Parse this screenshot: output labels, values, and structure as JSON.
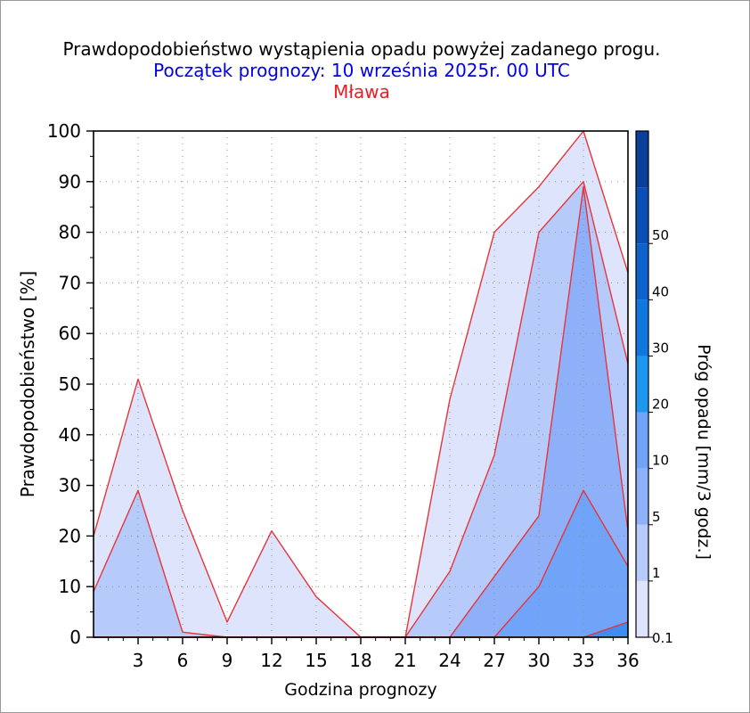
{
  "chart_data": {
    "type": "area",
    "title": "Prawdopodobieństwo wystąpienia opadu powyżej zadanego progu.",
    "subtitle": "Początek prognozy: 10 września 2025r. 00 UTC",
    "location": "Mława",
    "xlabel": "Godzina prognozy",
    "ylabel": "Prawdopodobieństwo [%]",
    "colorbar_label": "Próg opadu [mm/3 godz.]",
    "xlim": [
      0,
      36
    ],
    "ylim": [
      0,
      100
    ],
    "xticks": [
      3,
      6,
      9,
      12,
      15,
      18,
      21,
      24,
      27,
      30,
      33,
      36
    ],
    "yticks": [
      0,
      10,
      20,
      30,
      40,
      50,
      60,
      70,
      80,
      90,
      100
    ],
    "grid": true,
    "x": [
      0,
      3,
      6,
      9,
      12,
      15,
      18,
      21,
      24,
      27,
      30,
      33,
      36
    ],
    "series": [
      {
        "name": "0.1",
        "color": "#dde4fb",
        "values": [
          20,
          51,
          25,
          3,
          21,
          8,
          0,
          0,
          47,
          80,
          89,
          100,
          72
        ]
      },
      {
        "name": "1",
        "color": "#b7cbfa",
        "values": [
          9,
          29,
          1,
          0,
          0,
          0,
          0,
          0,
          13,
          36,
          80,
          90,
          54
        ]
      },
      {
        "name": "5",
        "color": "#8eb0f8",
        "values": [
          0,
          0,
          0,
          0,
          0,
          0,
          0,
          0,
          0,
          12,
          24,
          89,
          21
        ]
      },
      {
        "name": "10",
        "color": "#6fa4f9",
        "values": [
          0,
          0,
          0,
          0,
          0,
          0,
          0,
          0,
          0,
          0,
          10,
          29,
          14
        ]
      },
      {
        "name": "20",
        "color": "#3f8cf2",
        "values": [
          0,
          0,
          0,
          0,
          0,
          0,
          0,
          0,
          0,
          0,
          0,
          0,
          3
        ]
      }
    ],
    "colorbar": {
      "tick_labels": [
        "0.1",
        "1",
        "5",
        "10",
        "20",
        "30",
        "40",
        "50"
      ],
      "colors": [
        "#dde4fb",
        "#b7cbfa",
        "#8eb0f8",
        "#6fa4f9",
        "#1f96f0",
        "#0f78e0",
        "#0d62cc",
        "#0a4fb4",
        "#0a3f9a"
      ]
    },
    "outline_color": "#e8343a"
  }
}
